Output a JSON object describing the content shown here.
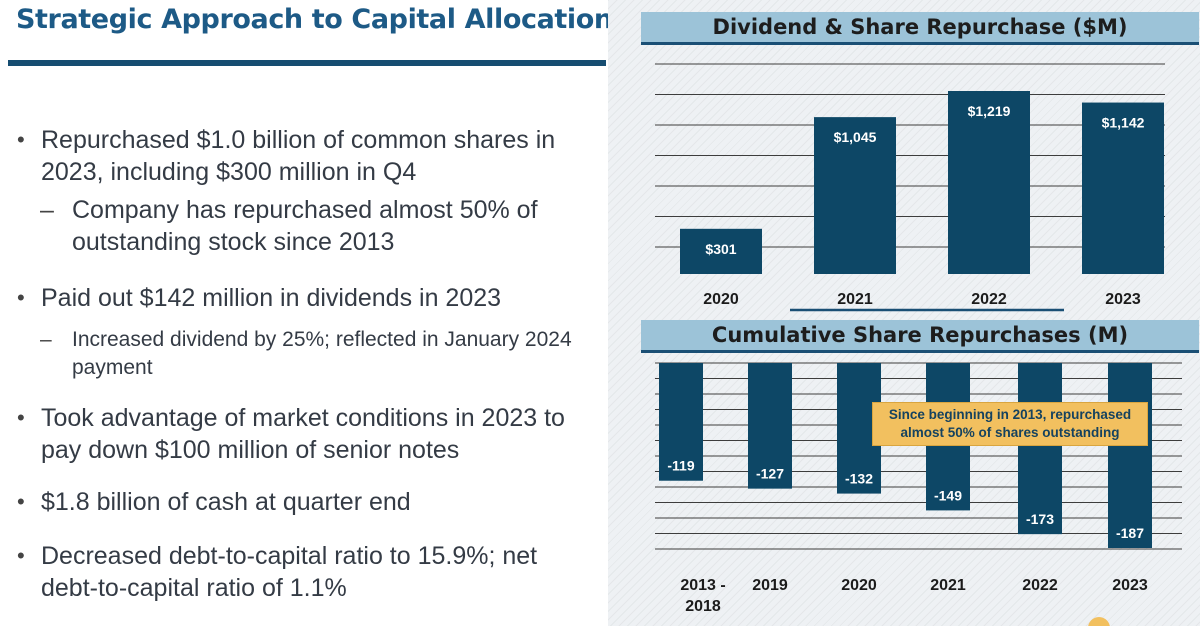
{
  "slide": {
    "title": "Strategic Approach to Capital Allocation",
    "bullets": [
      {
        "text": "Repurchased $1.0 billion of common shares in 2023, including $300 million in Q4",
        "sub": "Company has repurchased almost 50% of outstanding stock since 2013"
      },
      {
        "text": "Paid out $142 million in dividends in 2023",
        "sub": "Increased dividend by 25%; reflected in January 2024 payment"
      },
      {
        "text": "Took advantage of market conditions in 2023 to pay down $100 million of senior notes"
      },
      {
        "text": "$1.8 billion of cash at quarter end"
      },
      {
        "text": "Decreased debt-to-capital ratio to 15.9%; net debt-to-capital ratio of 1.1%"
      }
    ]
  },
  "colors": {
    "bar": "#0d4766",
    "band": "#9cc3d8",
    "title": "#1d5a86",
    "callout": "#f2c05f"
  },
  "chart_data": [
    {
      "type": "bar",
      "title": "Dividend & Share Repurchase ($M)",
      "categories": [
        "2020",
        "2021",
        "2022",
        "2023"
      ],
      "values": [
        301,
        1045,
        1219,
        1142
      ],
      "labels": [
        "$301",
        "$1,045",
        "$1,219",
        "$1,142"
      ],
      "ylim": [
        0,
        1350
      ],
      "grid": true
    },
    {
      "type": "bar",
      "title": "Cumulative Share Repurchases (M)",
      "categories": [
        "2013 - 2018",
        "2019",
        "2020",
        "2021",
        "2022",
        "2023"
      ],
      "values": [
        -119,
        -127,
        -132,
        -149,
        -173,
        -187
      ],
      "labels": [
        "-119",
        "-127",
        "-132",
        "-149",
        "-173",
        "-187"
      ],
      "ylim": [
        -200,
        0
      ],
      "grid": true,
      "annotation": "Since beginning in 2013, repurchased almost 50% of shares outstanding"
    }
  ]
}
